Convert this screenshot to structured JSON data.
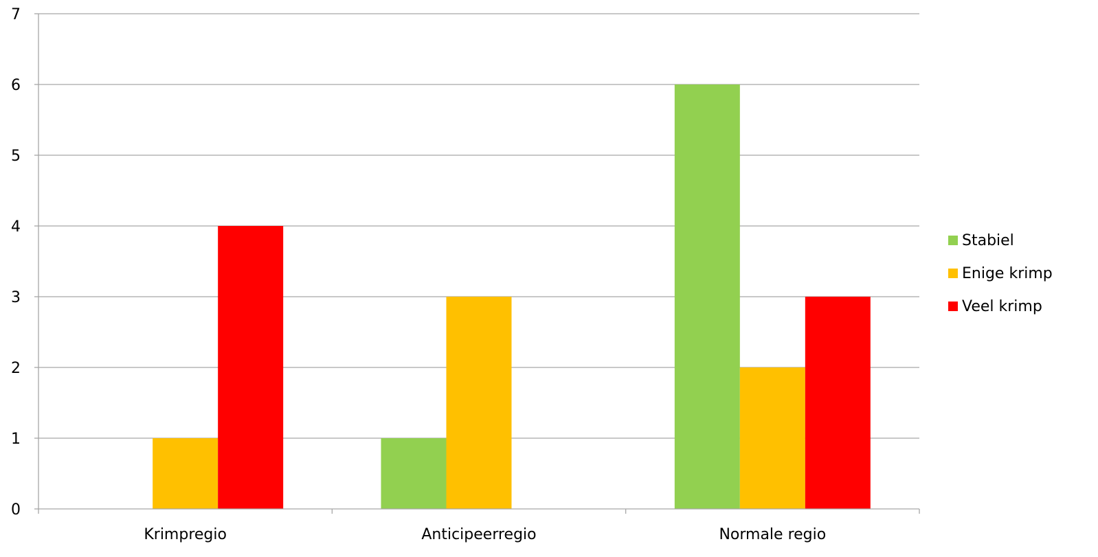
{
  "chart_data": {
    "type": "bar",
    "categories": [
      "Krimpregio",
      "Anticipeerregio",
      "Normale regio"
    ],
    "series": [
      {
        "name": "Stabiel",
        "color": "#92D050",
        "values": [
          0,
          1,
          6
        ]
      },
      {
        "name": "Enige krimp",
        "color": "#FFC000",
        "values": [
          1,
          3,
          2
        ]
      },
      {
        "name": "Veel krimp",
        "color": "#FF0000",
        "values": [
          4,
          0,
          3
        ]
      }
    ],
    "title": "",
    "xlabel": "",
    "ylabel": "",
    "ylim": [
      0,
      7
    ],
    "yticks": [
      "0",
      "1",
      "2",
      "3",
      "4",
      "5",
      "6",
      "7"
    ],
    "grid": true,
    "legend_position": "right",
    "gridline_color": "#A6A6A6"
  }
}
